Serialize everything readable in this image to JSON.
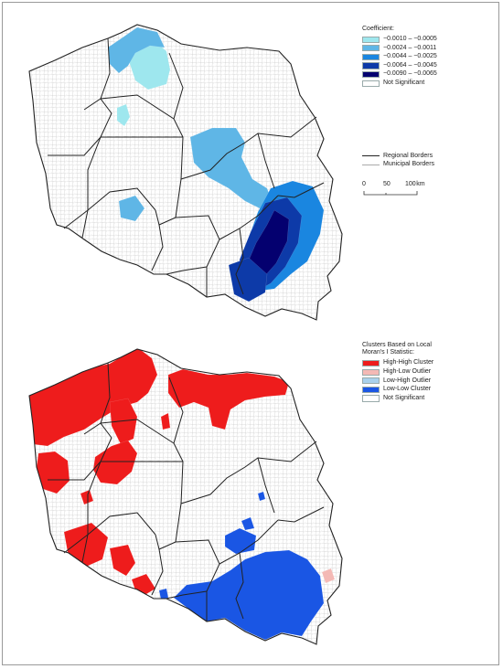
{
  "colors": {
    "coef_1": "#9ee7ee",
    "coef_2": "#5fb6e6",
    "coef_3": "#1a86e0",
    "coef_4": "#0d3aa8",
    "coef_5": "#04006f",
    "not_significant": "#ffffff",
    "high_high": "#ee1c1c",
    "high_low": "#f4b9b5",
    "low_high": "#a9d1ec",
    "low_low": "#1a56e4"
  },
  "map_top": {
    "legend_title": "Coefficient:",
    "legend_items": [
      {
        "label": "−0.0010 – −0.0005",
        "color_key": "coef_1"
      },
      {
        "label": "−0.0024 – −0.0011",
        "color_key": "coef_2"
      },
      {
        "label": "−0.0044 – −0.0025",
        "color_key": "coef_3"
      },
      {
        "label": "−0.0064 – −0.0045",
        "color_key": "coef_4"
      },
      {
        "label": "−0.0090 – −0.0065",
        "color_key": "coef_5"
      },
      {
        "label": "Not Significant",
        "color_key": "not_significant"
      }
    ],
    "border_legend": {
      "regional": "Regional Borders",
      "municipal": "Municipal Borders"
    },
    "scale": {
      "tick_0": "0",
      "tick_1": "50",
      "tick_2": "100",
      "unit": "km"
    }
  },
  "map_bottom": {
    "legend_title_line1": "Clusters Based on Local",
    "legend_title_line2": "Moran's I Statistic:",
    "legend_items": [
      {
        "label": "High-High Cluster",
        "color_key": "high_high"
      },
      {
        "label": "High-Low Outlier",
        "color_key": "high_low"
      },
      {
        "label": "Low-High Outlier",
        "color_key": "low_high"
      },
      {
        "label": "Low-Low Cluster",
        "color_key": "low_low"
      },
      {
        "label": "Not Significant",
        "color_key": "not_significant"
      }
    ]
  }
}
